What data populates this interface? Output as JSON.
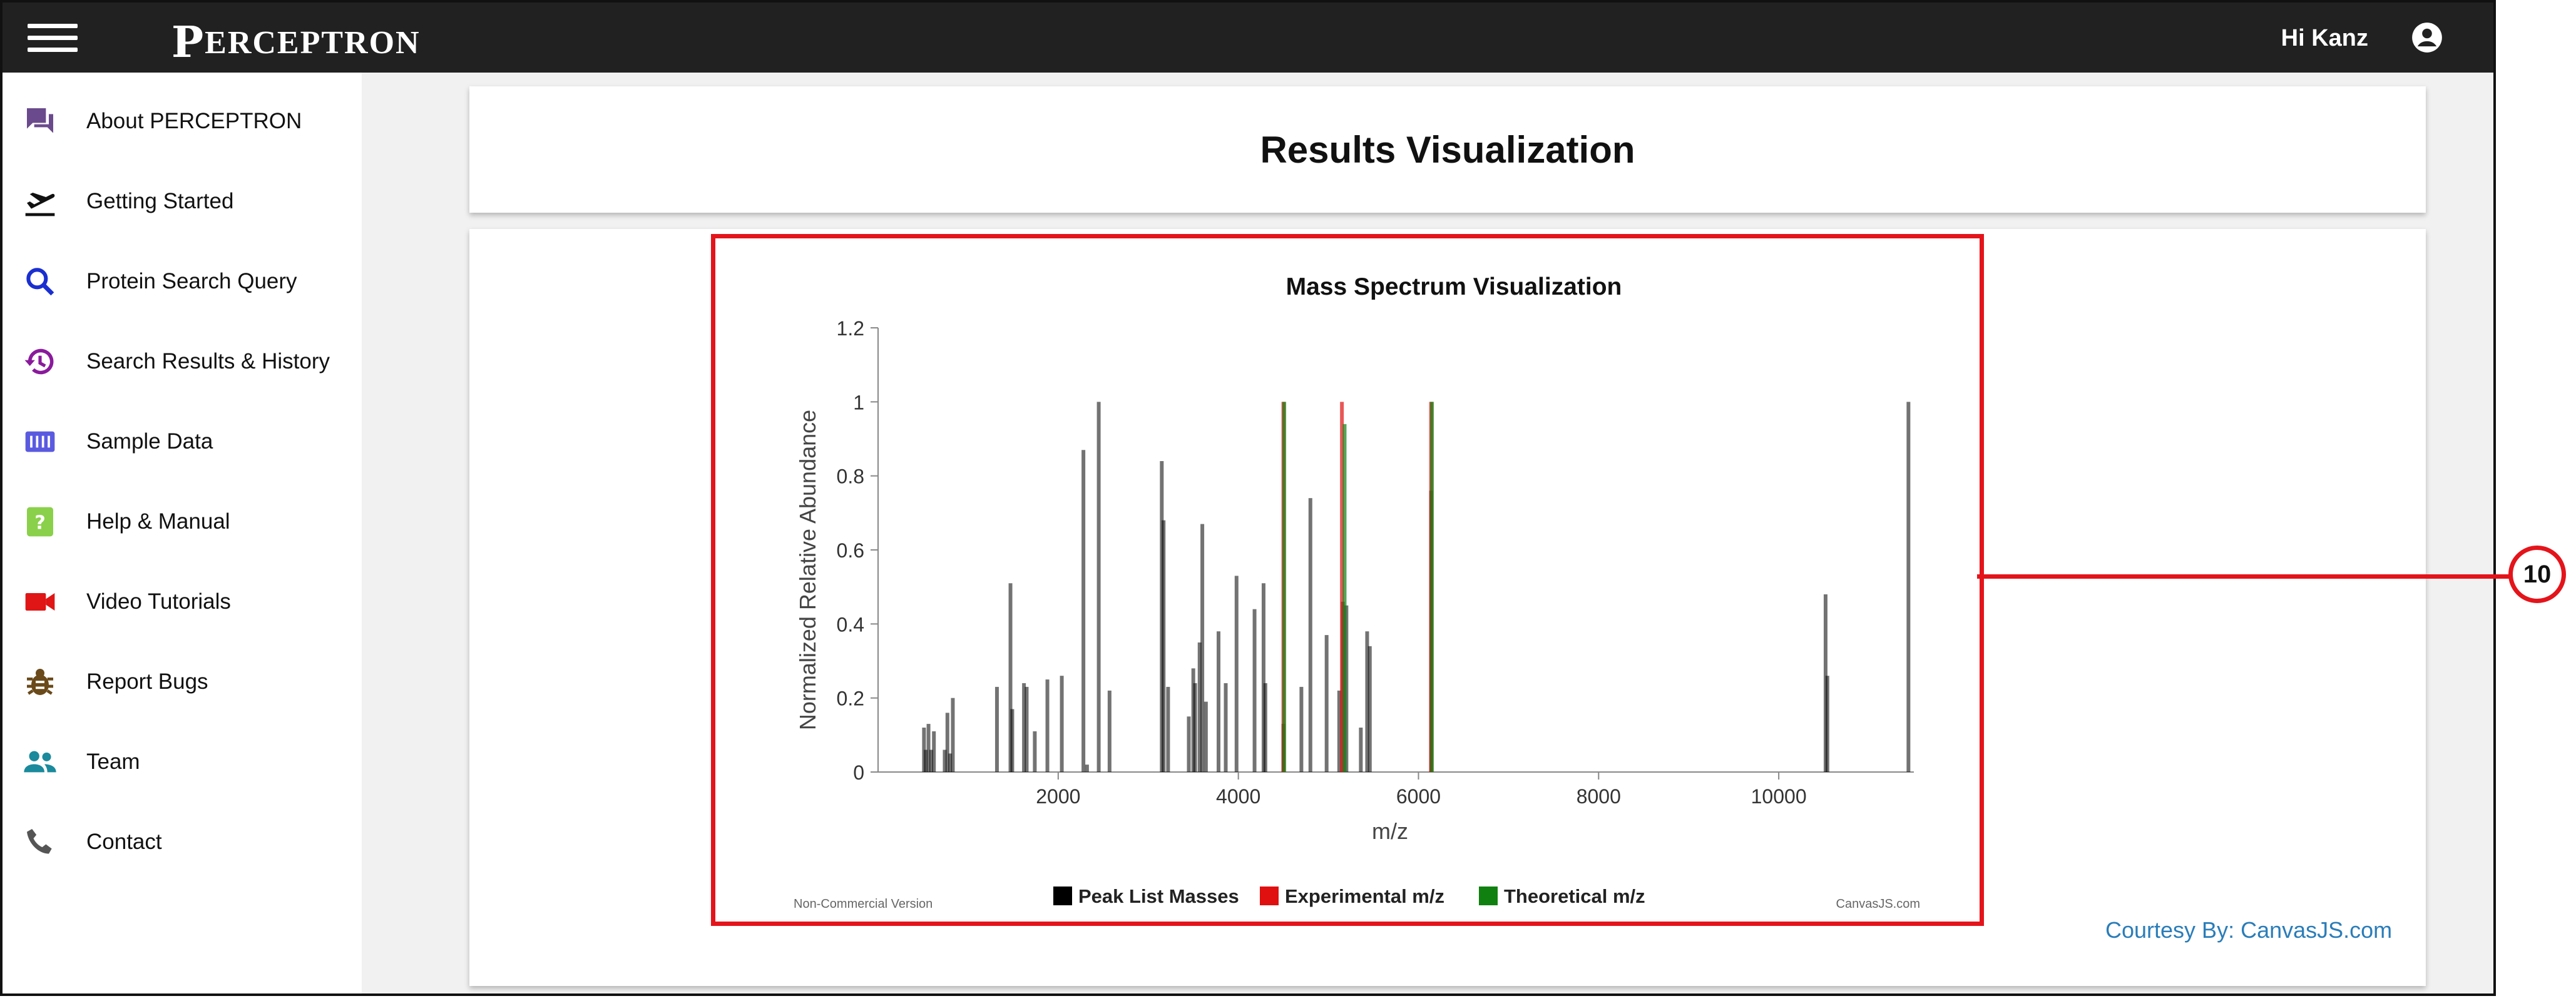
{
  "header": {
    "brand_cap": "P",
    "brand_rest": "ERCEPTRON",
    "greeting": "Hi Kanz"
  },
  "sidebar": {
    "items": [
      {
        "label": "About PERCEPTRON",
        "icon": "forum-icon",
        "color": "#6a4a8c"
      },
      {
        "label": "Getting Started",
        "icon": "flight-takeoff-icon",
        "color": "#111111"
      },
      {
        "label": "Protein Search Query",
        "icon": "search-icon",
        "color": "#1a2fd0"
      },
      {
        "label": "Search Results & History",
        "icon": "history-icon",
        "color": "#8a1a9c"
      },
      {
        "label": "Sample Data",
        "icon": "sd-card-icon",
        "color": "#5a5ae0"
      },
      {
        "label": "Help & Manual",
        "icon": "help-icon",
        "color": "#8ad04a"
      },
      {
        "label": "Video Tutorials",
        "icon": "video-icon",
        "color": "#e01515"
      },
      {
        "label": "Report Bugs",
        "icon": "bug-icon",
        "color": "#6a4a1a"
      },
      {
        "label": "Team",
        "icon": "people-icon",
        "color": "#1a8a9c"
      },
      {
        "label": "Contact",
        "icon": "phone-icon",
        "color": "#555555"
      }
    ]
  },
  "main": {
    "title": "Results Visualization",
    "courtesy": "Courtesy By: CanvasJS.com",
    "callout_number": "10"
  },
  "chart_data": {
    "type": "bar",
    "title": "Mass Spectrum Visualization",
    "xlabel": "m/z",
    "ylabel": "Normalized Relative Abundance",
    "xlim": [
      0,
      11500
    ],
    "ylim": [
      0,
      1.2
    ],
    "x_ticks": [
      2000,
      4000,
      6000,
      8000,
      10000
    ],
    "y_ticks": [
      0,
      0.2,
      0.4,
      0.6,
      0.8,
      1,
      1.2
    ],
    "y_tick_labels": [
      "0",
      "0.2",
      "0.4",
      "0.6",
      "0.8",
      "1",
      "1.2"
    ],
    "legend_placement": "bottom",
    "watermark_left": "Non-Commercial Version",
    "watermark_right": "CanvasJS.com",
    "series": [
      {
        "name": "Peak List Masses",
        "color": "#000000",
        "x": [
          510,
          530,
          560,
          590,
          620,
          740,
          770,
          800,
          830,
          1320,
          1470,
          1490,
          1620,
          1650,
          1740,
          1880,
          2040,
          2280,
          2320,
          2450,
          2570,
          3150,
          3170,
          3220,
          3450,
          3500,
          3520,
          3570,
          3600,
          3640,
          3780,
          3860,
          3980,
          4180,
          4280,
          4300,
          4500,
          4700,
          4800,
          4980,
          5120,
          5160,
          5200,
          5360,
          5430,
          5460,
          6140,
          10520,
          10540,
          11440
        ],
        "values": [
          0.12,
          0.06,
          0.13,
          0.06,
          0.11,
          0.06,
          0.16,
          0.05,
          0.2,
          0.23,
          0.51,
          0.17,
          0.24,
          0.23,
          0.11,
          0.25,
          0.26,
          0.87,
          0.02,
          1.0,
          0.22,
          0.84,
          0.68,
          0.23,
          0.15,
          0.28,
          0.24,
          0.35,
          0.67,
          0.19,
          0.38,
          0.24,
          0.53,
          0.44,
          0.51,
          0.24,
          0.13,
          0.23,
          0.74,
          0.37,
          0.22,
          0.46,
          0.45,
          0.12,
          0.38,
          0.34,
          0.76,
          0.48,
          0.26,
          1.0
        ]
      },
      {
        "name": "Experimental m/z",
        "color": "#e01010",
        "x": [
          4500,
          5150,
          6140
        ],
        "values": [
          1.0,
          1.0,
          1.0
        ]
      },
      {
        "name": "Theoretical m/z",
        "color": "#108010",
        "x": [
          4510,
          5180,
          6150
        ],
        "values": [
          1.0,
          0.94,
          1.0
        ]
      }
    ]
  }
}
